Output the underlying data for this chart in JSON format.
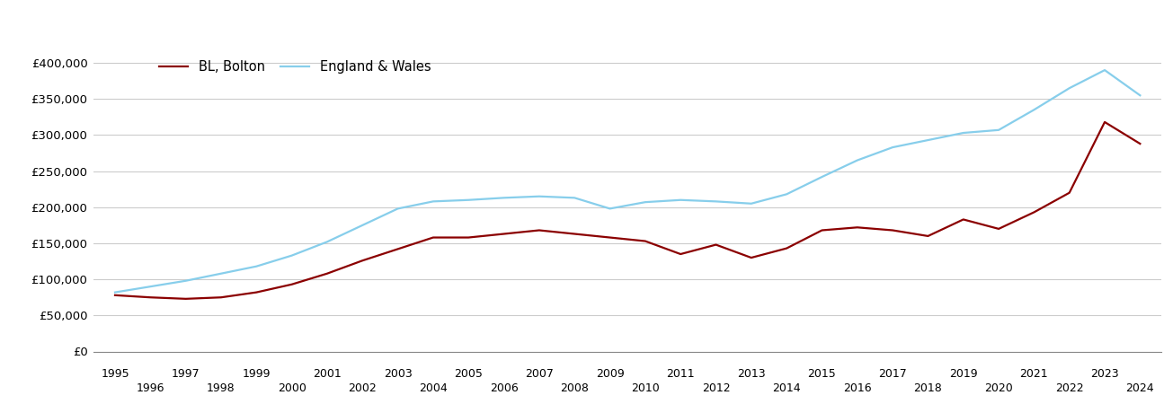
{
  "legend_labels": [
    "BL, Bolton",
    "England & Wales"
  ],
  "bolton_color": "#8B0000",
  "ew_color": "#87CEEB",
  "line_width": 1.6,
  "bg_color": "#ffffff",
  "grid_color": "#cccccc",
  "years": [
    1995,
    1996,
    1997,
    1998,
    1999,
    2000,
    2001,
    2002,
    2003,
    2004,
    2005,
    2006,
    2007,
    2008,
    2009,
    2010,
    2011,
    2012,
    2013,
    2014,
    2015,
    2016,
    2017,
    2018,
    2019,
    2020,
    2021,
    2022,
    2023,
    2024
  ],
  "bolton": [
    78000,
    75000,
    73000,
    75000,
    82000,
    93000,
    108000,
    126000,
    142000,
    158000,
    158000,
    163000,
    168000,
    163000,
    158000,
    153000,
    135000,
    148000,
    130000,
    143000,
    168000,
    172000,
    168000,
    160000,
    183000,
    170000,
    193000,
    220000,
    318000,
    288000
  ],
  "england_wales": [
    82000,
    90000,
    98000,
    108000,
    118000,
    133000,
    152000,
    175000,
    198000,
    208000,
    210000,
    213000,
    215000,
    213000,
    198000,
    207000,
    210000,
    208000,
    205000,
    218000,
    242000,
    265000,
    283000,
    293000,
    303000,
    307000,
    335000,
    365000,
    390000,
    355000
  ],
  "ylim": [
    0,
    420000
  ],
  "yticks": [
    0,
    50000,
    100000,
    150000,
    200000,
    250000,
    300000,
    350000,
    400000
  ],
  "xlim_left": 1994.4,
  "xlim_right": 2024.6,
  "xticks_odd": [
    1995,
    1997,
    1999,
    2001,
    2003,
    2005,
    2007,
    2009,
    2011,
    2013,
    2015,
    2017,
    2019,
    2021,
    2023
  ],
  "xticks_even": [
    1996,
    1998,
    2000,
    2002,
    2004,
    2006,
    2008,
    2010,
    2012,
    2014,
    2016,
    2018,
    2020,
    2022,
    2024
  ]
}
